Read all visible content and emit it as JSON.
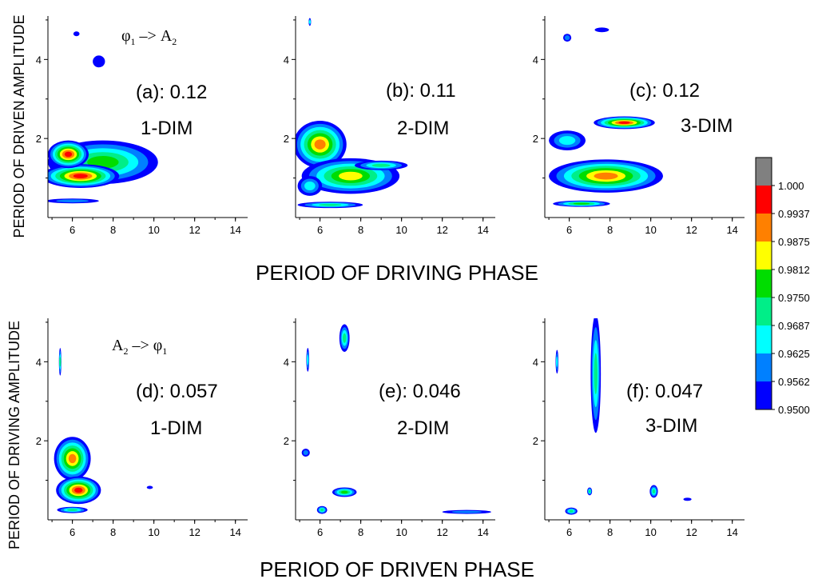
{
  "chart_data": {
    "type": "heatmap",
    "colorbar": {
      "levels": [
        "1.000",
        "0.9937",
        "0.9875",
        "0.9812",
        "0.9750",
        "0.9687",
        "0.9625",
        "0.9562",
        "0.9500"
      ],
      "colors": [
        "#808080",
        "#ff0000",
        "#ff8000",
        "#ffff00",
        "#00dd00",
        "#00ee88",
        "#00ffff",
        "#0080ff",
        "#0000ff"
      ]
    },
    "xlim": [
      4.8,
      14.6
    ],
    "ylim": [
      0,
      5.1
    ],
    "x_ticks": [
      6,
      8,
      10,
      12,
      14
    ],
    "y_ticks": [
      2,
      4
    ],
    "rows": [
      {
        "xlabel": "PERIOD OF DRIVING PHASE",
        "ylabel": "PERIOD OF DRIVEN AMPLITUDE",
        "direction": {
          "from": "φ",
          "from_sub": "1",
          "arrow": " –> ",
          "to": "A",
          "to_sub": "2"
        },
        "panels": [
          {
            "label": "(a): 0.12",
            "dim": "1-DIM"
          },
          {
            "label": "(b): 0.11",
            "dim": "2-DIM"
          },
          {
            "label": "(c): 0.12",
            "dim": "3-DIM"
          }
        ]
      },
      {
        "xlabel": "PERIOD OF DRIVEN PHASE",
        "ylabel": "PERIOD OF DRIVING AMPLITUDE",
        "direction": {
          "from": "A",
          "from_sub": "2",
          "arrow": " –> ",
          "to": "φ",
          "to_sub": "1"
        },
        "panels": [
          {
            "label": "(d): 0.057",
            "dim": "1-DIM"
          },
          {
            "label": "(e): 0.046",
            "dim": "2-DIM"
          },
          {
            "label": "(f): 0.047",
            "dim": "3-DIM"
          }
        ]
      }
    ],
    "blobs": [
      [
        [
          [
            7.5,
            1.4,
            2.7,
            0.55,
            4
          ],
          [
            6.4,
            1.05,
            1.9,
            0.3,
            1
          ],
          [
            5.8,
            1.6,
            1.0,
            0.35,
            1
          ],
          [
            6.0,
            0.42,
            1.3,
            0.06,
            7
          ],
          [
            7.3,
            3.95,
            0.3,
            0.15,
            8
          ],
          [
            6.2,
            4.65,
            0.15,
            0.06,
            8
          ]
        ],
        [
          [
            6.0,
            1.85,
            1.3,
            0.6,
            2
          ],
          [
            7.5,
            1.05,
            2.4,
            0.45,
            3
          ],
          [
            9.0,
            1.32,
            1.3,
            0.12,
            5
          ],
          [
            5.5,
            0.8,
            0.6,
            0.25,
            6
          ],
          [
            6.5,
            0.32,
            1.6,
            0.08,
            5
          ],
          [
            5.5,
            4.95,
            0.06,
            0.1,
            6
          ]
        ],
        [
          [
            7.8,
            1.05,
            2.8,
            0.42,
            2
          ],
          [
            8.7,
            2.4,
            1.5,
            0.16,
            1
          ],
          [
            5.9,
            1.95,
            0.9,
            0.25,
            6
          ],
          [
            6.6,
            0.35,
            1.4,
            0.08,
            4
          ],
          [
            7.6,
            4.75,
            0.35,
            0.06,
            8
          ],
          [
            5.9,
            4.55,
            0.2,
            0.1,
            7
          ]
        ]
      ],
      [
        [
          [
            6.0,
            1.55,
            0.9,
            0.55,
            2
          ],
          [
            6.3,
            0.75,
            1.1,
            0.35,
            1
          ],
          [
            6.0,
            0.25,
            0.75,
            0.08,
            5
          ],
          [
            5.4,
            4.0,
            0.06,
            0.35,
            5
          ],
          [
            9.8,
            0.82,
            0.15,
            0.04,
            8
          ]
        ],
        [
          [
            7.2,
            4.6,
            0.25,
            0.35,
            5
          ],
          [
            5.4,
            4.05,
            0.07,
            0.3,
            6
          ],
          [
            5.3,
            1.7,
            0.2,
            0.1,
            7
          ],
          [
            7.2,
            0.7,
            0.6,
            0.12,
            4
          ],
          [
            6.1,
            0.25,
            0.25,
            0.1,
            5
          ],
          [
            13.2,
            0.2,
            1.2,
            0.05,
            7
          ]
        ],
        [
          [
            7.3,
            3.7,
            0.25,
            1.5,
            5
          ],
          [
            5.4,
            4.0,
            0.07,
            0.3,
            6
          ],
          [
            10.15,
            0.72,
            0.2,
            0.16,
            5
          ],
          [
            6.1,
            0.22,
            0.3,
            0.09,
            5
          ],
          [
            11.8,
            0.52,
            0.2,
            0.04,
            8
          ],
          [
            7.0,
            0.72,
            0.12,
            0.1,
            5
          ]
        ]
      ]
    ]
  }
}
